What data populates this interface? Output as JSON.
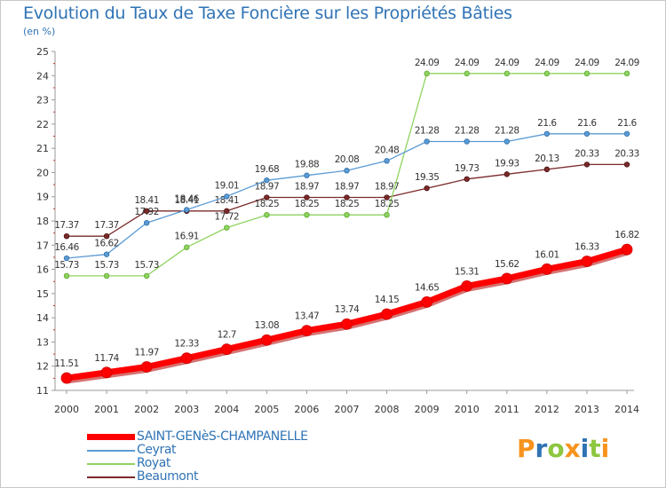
{
  "title": "Evolution du Taux de Taxe Foncière sur les Propriétés Bâties",
  "subtitle": "(en %)",
  "logo": {
    "text": "Proxiti",
    "letters": [
      "P",
      "r",
      "o",
      "x",
      "i",
      "t",
      "i"
    ],
    "colors": [
      "#f7941d",
      "#2f73b5",
      "#8dc63f",
      "#f7941d",
      "#2f73b5",
      "#8dc63f",
      "#f7941d"
    ]
  },
  "chart_data": {
    "type": "line",
    "title": "Evolution du Taux de Taxe Foncière sur les Propriétés Bâties",
    "ylabel": "(en %)",
    "xlabel": "",
    "x": [
      "2000",
      "2001",
      "2002",
      "2003",
      "2004",
      "2005",
      "2006",
      "2007",
      "2008",
      "2009",
      "2010",
      "2011",
      "2012",
      "2013",
      "2014"
    ],
    "ylim": [
      11,
      25
    ],
    "yticks": [
      "11",
      "12",
      "13",
      "14",
      "15",
      "16",
      "17",
      "18",
      "19",
      "20",
      "21",
      "22",
      "23",
      "24",
      "25"
    ],
    "grid": false,
    "legend": "bottom-left",
    "series": [
      {
        "name": "SAINT-GENèS-CHAMPANELLE",
        "color": "#ff0000",
        "values": [
          11.51,
          11.74,
          11.97,
          12.33,
          12.7,
          13.08,
          13.47,
          13.74,
          14.15,
          14.65,
          15.31,
          15.62,
          16.01,
          16.33,
          16.82
        ],
        "labels": [
          "11.51",
          "11.74",
          "11.97",
          "12.33",
          "12.7",
          "13.08",
          "13.47",
          "13.74",
          "14.15",
          "14.65",
          "15.31",
          "15.62",
          "16.01",
          "16.33",
          "16.82"
        ]
      },
      {
        "name": "Ceyrat",
        "color": "#5b9bd5",
        "values": [
          16.46,
          16.62,
          17.92,
          18.46,
          19.01,
          19.68,
          19.88,
          20.08,
          20.48,
          21.28,
          21.28,
          21.28,
          21.6,
          21.6,
          21.6
        ],
        "labels": [
          "16.46",
          "16.62",
          "17.92",
          "18.46",
          "19.01",
          "19.68",
          "19.88",
          "20.08",
          "20.48",
          "21.28",
          "21.28",
          "21.28",
          "21.6",
          "21.6",
          "21.6"
        ]
      },
      {
        "name": "Royat",
        "color": "#8fd35f",
        "values": [
          15.73,
          15.73,
          15.73,
          16.91,
          17.72,
          18.25,
          18.25,
          18.25,
          18.25,
          24.09,
          24.09,
          24.09,
          24.09,
          24.09,
          24.09
        ],
        "labels": [
          "15.73",
          "15.73",
          "15.73",
          "16.91",
          "17.72",
          "18.25",
          "18.25",
          "18.25",
          "18.25",
          "24.09",
          "24.09",
          "24.09",
          "24.09",
          "24.09",
          "24.09"
        ]
      },
      {
        "name": "Beaumont",
        "color": "#7b2a2a",
        "values": [
          17.37,
          17.37,
          18.41,
          18.41,
          18.41,
          18.97,
          18.97,
          18.97,
          18.97,
          19.35,
          19.73,
          19.93,
          20.13,
          20.33,
          20.33
        ],
        "labels": [
          "17.37",
          "17.37",
          "18.41",
          "18.41",
          "18.41",
          "18.97",
          "18.97",
          "18.97",
          "18.97",
          "19.35",
          "19.73",
          "19.93",
          "20.13",
          "20.33",
          "20.33"
        ]
      }
    ]
  }
}
